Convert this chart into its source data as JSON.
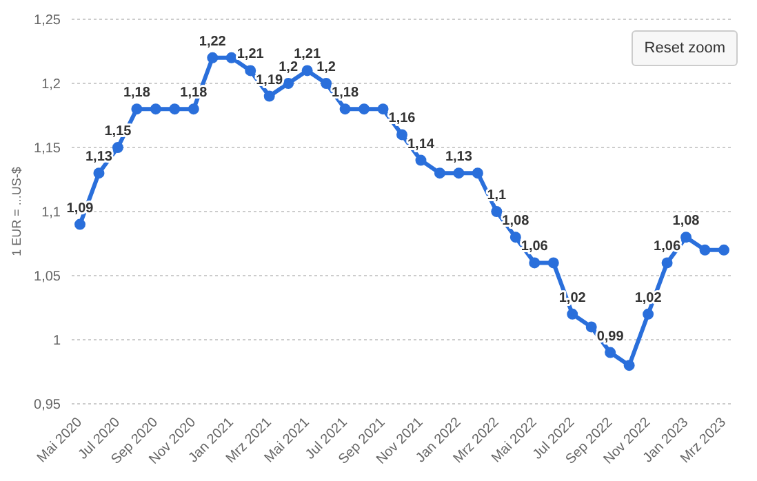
{
  "chart_data": {
    "type": "line",
    "ylabel": "1 EUR = ...US-$",
    "categories": [
      "Mai 2020",
      null,
      "Jul 2020",
      null,
      "Sep 2020",
      null,
      "Nov 2020",
      null,
      "Jan 2021",
      null,
      "Mrz 2021",
      null,
      "Mai 2021",
      null,
      "Jul 2021",
      null,
      "Sep 2021",
      null,
      "Nov 2021",
      null,
      "Jan 2022",
      null,
      "Mrz 2022",
      null,
      "Mai 2022",
      null,
      "Jul 2022",
      null,
      "Sep 2022",
      null,
      "Nov 2022",
      null,
      "Jan 2023",
      null,
      "Mrz 2023"
    ],
    "series": [
      {
        "color": "#2a6fdb",
        "values": [
          1.09,
          1.13,
          1.15,
          1.18,
          1.18,
          1.18,
          1.18,
          1.22,
          1.22,
          1.21,
          1.19,
          1.2,
          1.21,
          1.2,
          1.18,
          1.18,
          1.18,
          1.16,
          1.14,
          1.13,
          1.13,
          1.13,
          1.1,
          1.08,
          1.06,
          1.06,
          1.02,
          1.01,
          0.99,
          0.98,
          1.02,
          1.06,
          1.08,
          1.07,
          1.07
        ],
        "value_labels": [
          "1,09",
          "1,13",
          "1,15",
          "1,18",
          null,
          null,
          "1,18",
          "1,22",
          null,
          "1,21",
          "1,19",
          "1,2",
          "1,21",
          "1,2",
          "1,18",
          null,
          null,
          "1,16",
          "1,14",
          null,
          "1,13",
          null,
          "1,1",
          "1,08",
          "1,06",
          null,
          "1,02",
          null,
          "0,99",
          null,
          "1,02",
          "1,06",
          "1,08",
          null,
          null
        ]
      }
    ],
    "ylim": [
      0.95,
      1.25
    ],
    "yticks": [
      {
        "value": 0.95,
        "label": "0,95"
      },
      {
        "value": 1,
        "label": "1"
      },
      {
        "value": 1.05,
        "label": "1,05"
      },
      {
        "value": 1.1,
        "label": "1,1"
      },
      {
        "value": 1.15,
        "label": "1,15"
      },
      {
        "value": 1.2,
        "label": "1,2"
      },
      {
        "value": 1.25,
        "label": "1,25"
      }
    ],
    "grid": "y",
    "marker": "circle",
    "line_style": "solid",
    "legend": false,
    "annotations": [
      "Reset zoom"
    ]
  }
}
